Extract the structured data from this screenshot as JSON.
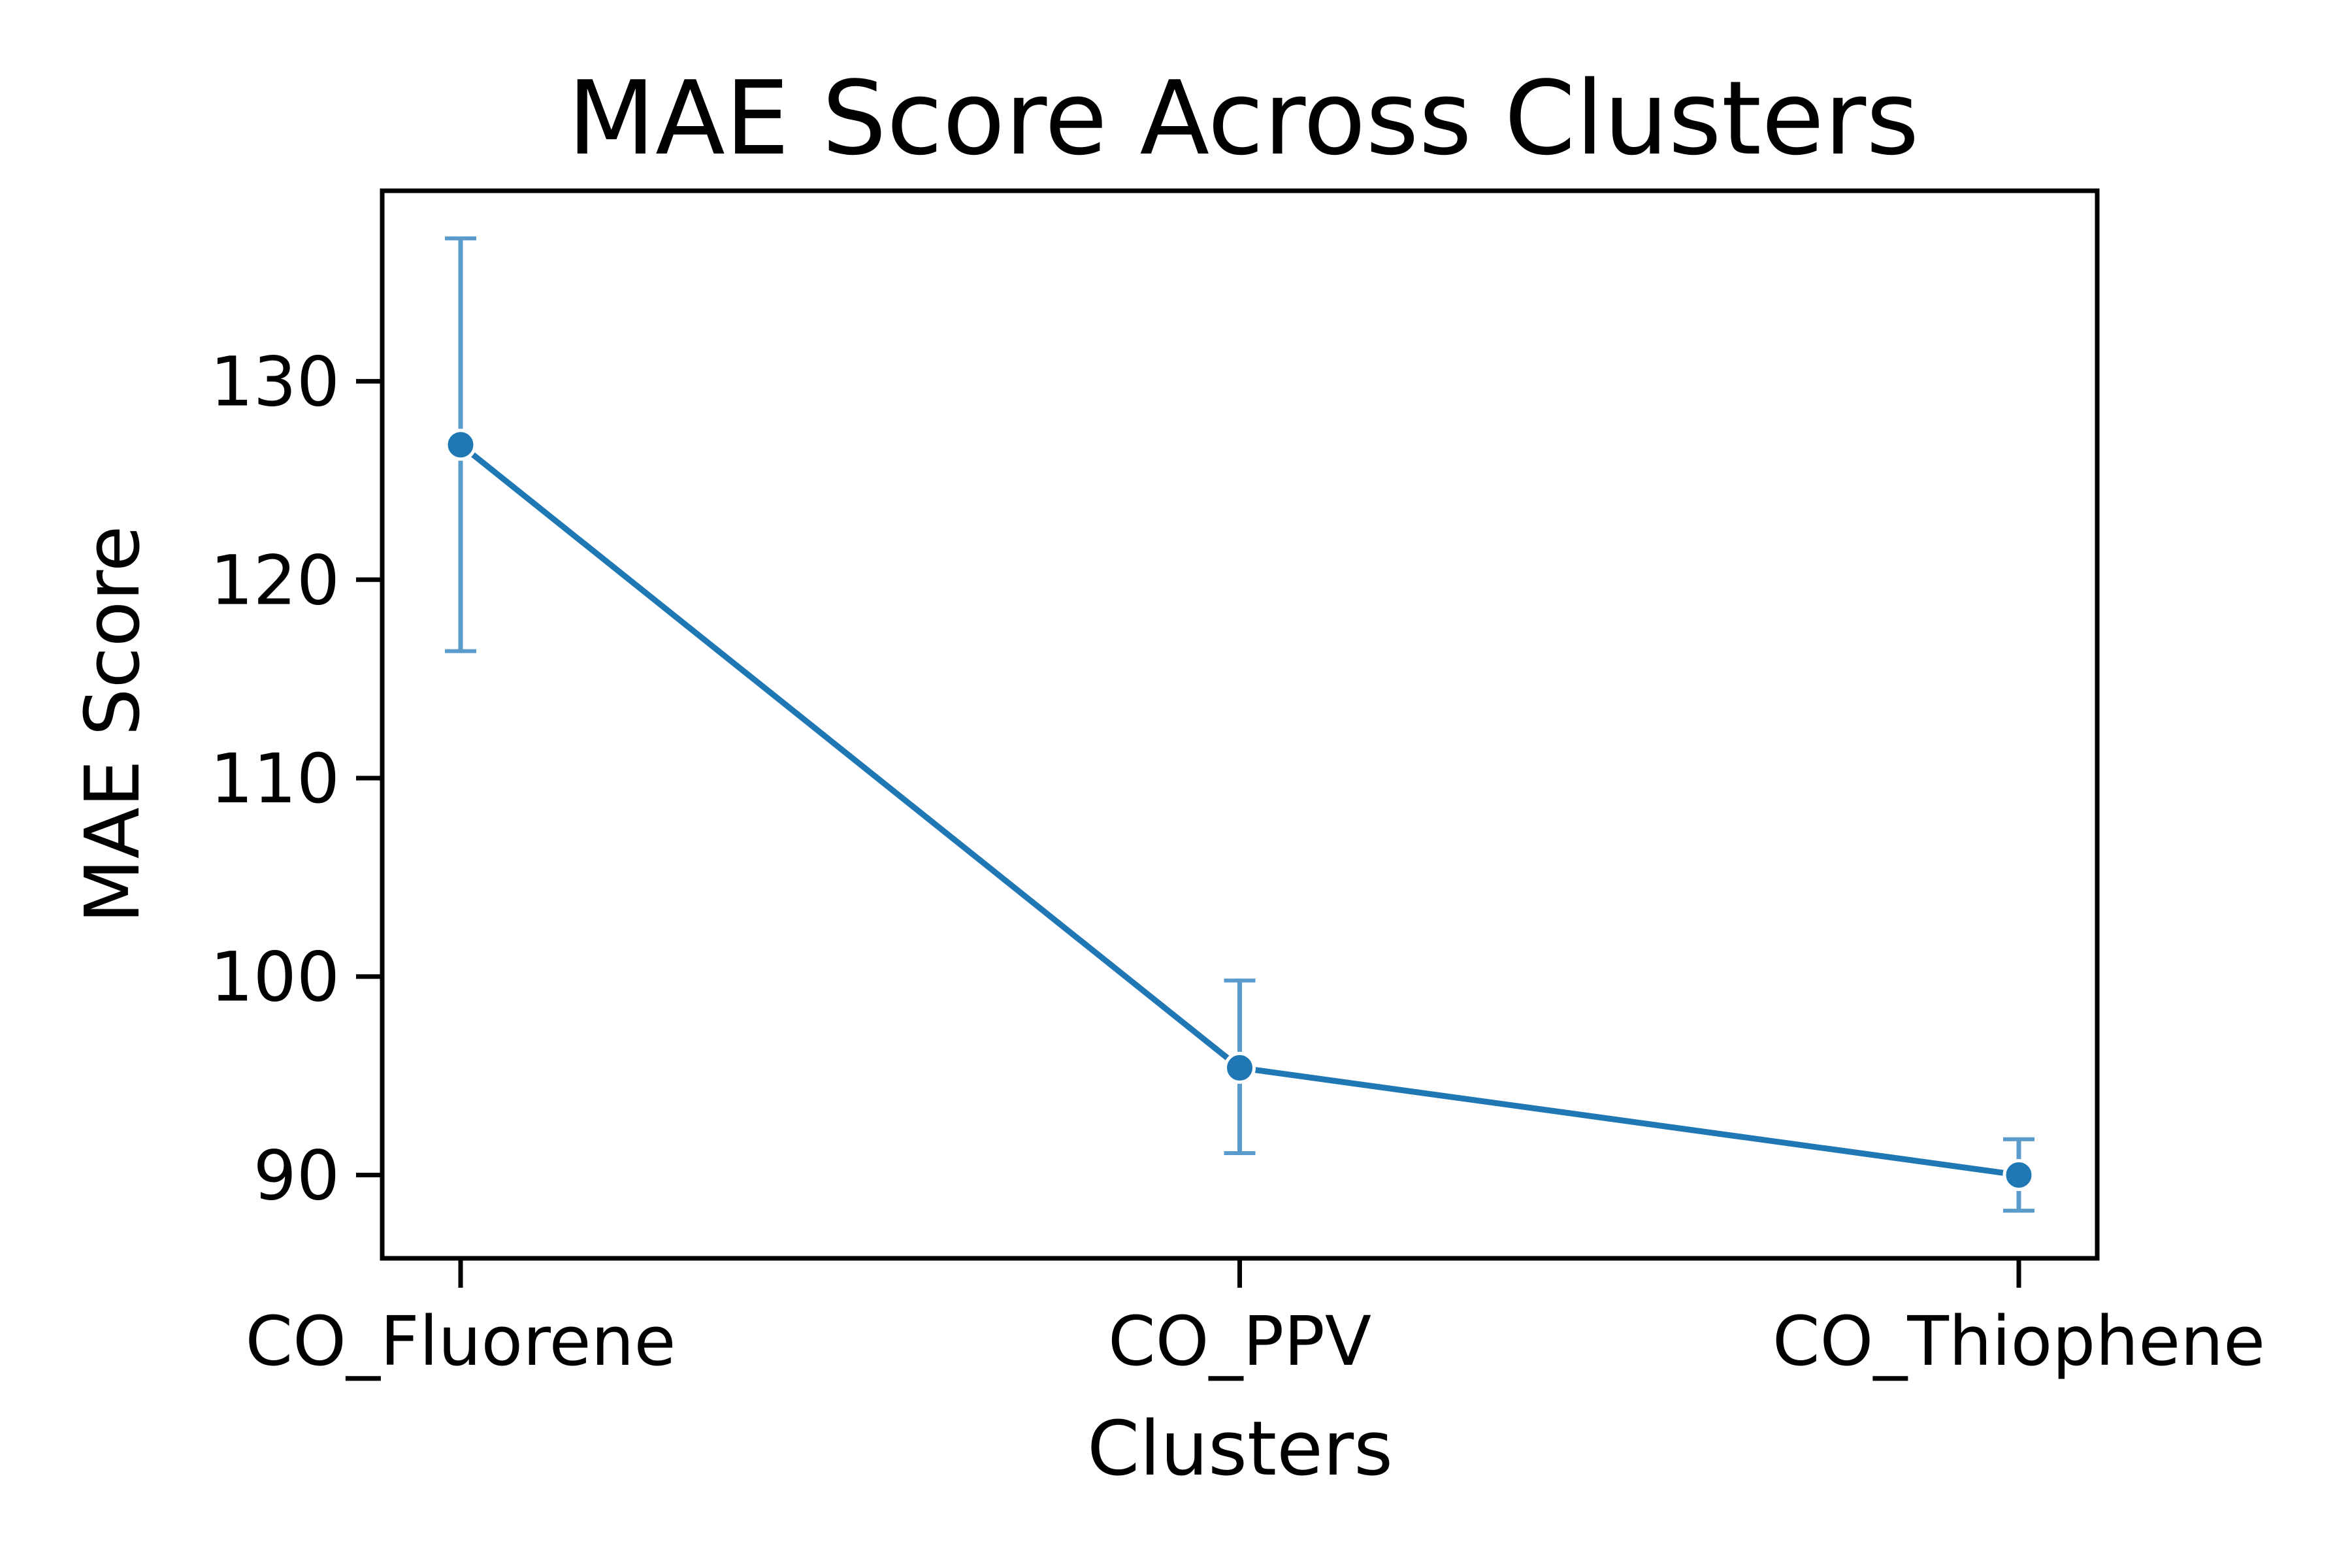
{
  "chart_data": {
    "type": "line",
    "title": "MAE Score Across Clusters",
    "xlabel": "Clusters",
    "ylabel": "MAE Score",
    "categories": [
      "CO_Fluorene",
      "CO_PPV",
      "CO_Thiophene"
    ],
    "series": [
      {
        "values": [
          126.8,
          95.4,
          90.0
        ],
        "error_low": [
          116.4,
          91.1,
          88.2
        ],
        "error_high": [
          137.2,
          99.8,
          91.8
        ]
      }
    ],
    "yticks": [
      90,
      100,
      110,
      120,
      130
    ],
    "ylim": [
      85.8,
      139.6
    ],
    "grid": false,
    "line_color": "#1f77b4",
    "errorbar_color": "#5a9bcb"
  }
}
